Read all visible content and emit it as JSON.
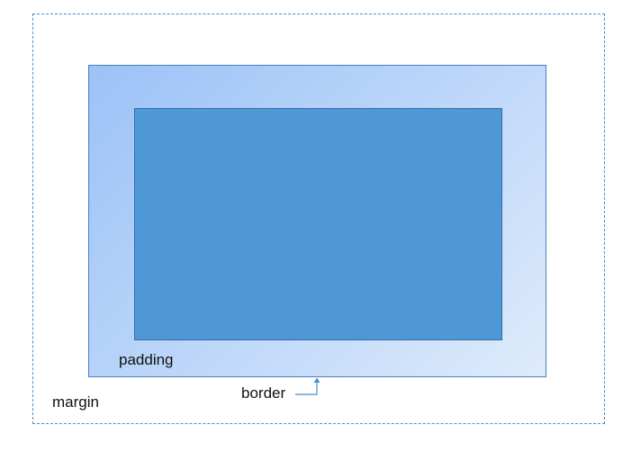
{
  "diagram": {
    "labels": {
      "padding": "padding",
      "border": "border",
      "margin": "margin"
    },
    "colors": {
      "content_fill": "#4f98d8",
      "padding_gradient_start": "#9cc2f7",
      "padding_gradient_end": "#deebfb",
      "margin_outline": "#4a8fc7",
      "pointer": "#4a8fc7"
    }
  }
}
